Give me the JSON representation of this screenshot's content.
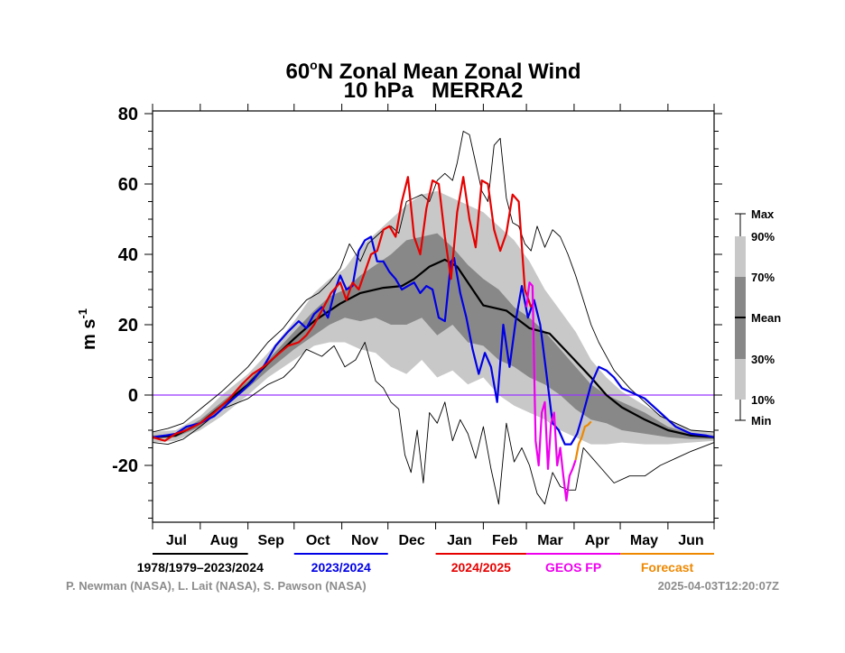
{
  "chart_data": {
    "type": "line",
    "title": "60°N Zonal Mean Zonal Wind",
    "subtitle": "10 hPa   MERRA2",
    "title_degree_part": {
      "pre": "60",
      "deg": "o",
      "post": "N Zonal Mean Zonal Wind"
    },
    "xlabel": "",
    "ylabel": "m s",
    "ylabel_superscript": "-1",
    "x_units": "days since Jul 1",
    "xlim": [
      0,
      365
    ],
    "ylim": [
      -36,
      81
    ],
    "y_ticks": [
      -20,
      0,
      20,
      40,
      60,
      80
    ],
    "y_minor_step": 5,
    "grid": false,
    "months": [
      "Jul",
      "Aug",
      "Sep",
      "Oct",
      "Nov",
      "Dec",
      "Jan",
      "Feb",
      "Mar",
      "Apr",
      "May",
      "Jun"
    ],
    "month_starts": [
      0,
      31,
      62,
      92,
      123,
      153,
      184,
      215,
      243,
      274,
      304,
      335,
      365
    ],
    "zero_line": {
      "value": 0,
      "color": "#9933ff"
    },
    "colors": {
      "climatology": "#000000",
      "y2023": "#0000e6",
      "y2024": "#e60000",
      "geos": "#ee00ee",
      "forecast": "#ee8800",
      "band_outer": "#c8c8c8",
      "band_inner": "#888888"
    },
    "bands": {
      "x": [
        0,
        15,
        31,
        45,
        62,
        75,
        92,
        105,
        115,
        125,
        135,
        145,
        155,
        165,
        175,
        185,
        195,
        205,
        215,
        225,
        235,
        245,
        255,
        265,
        275,
        285,
        295,
        305,
        320,
        335,
        350,
        365
      ],
      "p10": [
        -13.5,
        -13,
        -10,
        -6,
        0,
        5,
        10,
        14,
        15,
        15,
        13,
        12,
        8,
        6,
        10,
        5,
        7,
        3,
        5,
        0,
        -3,
        -5,
        -7,
        -10,
        -12,
        -14,
        -14,
        -13.5,
        -14,
        -14,
        -13.5,
        -13
      ],
      "p30": [
        -12.5,
        -12,
        -9,
        -4,
        2,
        7,
        13,
        17,
        20,
        22,
        21,
        22,
        20,
        20,
        22,
        17,
        20,
        15,
        14,
        10,
        8,
        5,
        3,
        0,
        -4,
        -7,
        -8,
        -10,
        -11,
        -12,
        -12.5,
        -12.5
      ],
      "p70": [
        -11.5,
        -11,
        -7,
        -2,
        4,
        10,
        18,
        24,
        28,
        30,
        34,
        37,
        40,
        44,
        45,
        46,
        42,
        37,
        33,
        30,
        25,
        22,
        18,
        13,
        8,
        3,
        0,
        -2,
        -5,
        -9,
        -11,
        -11.5
      ],
      "p90": [
        -10.5,
        -10,
        -6,
        0,
        6,
        12,
        21,
        29,
        33,
        36,
        42,
        46,
        50,
        54,
        57,
        58,
        56,
        54,
        52,
        48,
        44,
        38,
        30,
        24,
        18,
        10,
        5,
        1,
        -3,
        -7,
        -10,
        -10.5
      ]
    },
    "series": [
      {
        "name": "1978/1979–2023/2024 Mean",
        "key": "mean",
        "color": "#000000",
        "x": [
          0,
          15,
          31,
          45,
          62,
          75,
          92,
          105,
          122,
          135,
          150,
          162,
          170,
          180,
          190,
          198,
          208,
          215,
          230,
          245,
          258,
          270,
          285,
          295,
          305,
          320,
          335,
          350,
          365
        ],
        "y": [
          -12,
          -11.5,
          -8,
          -3,
          3,
          9,
          16,
          21,
          26,
          29,
          30.5,
          31,
          33,
          36.5,
          38.5,
          36.5,
          30,
          25.5,
          24,
          19,
          17.5,
          12,
          5,
          0,
          -3.5,
          -7,
          -10,
          -11.5,
          -12
        ]
      },
      {
        "name": "Max",
        "key": "max",
        "color": "#000000",
        "x": [
          0,
          10,
          20,
          31,
          45,
          62,
          75,
          85,
          92,
          100,
          108,
          115,
          122,
          128,
          135,
          140,
          145,
          150,
          155,
          160,
          165,
          170,
          175,
          180,
          185,
          190,
          195,
          198,
          202,
          206,
          210,
          214,
          218,
          222,
          226,
          230,
          234,
          238,
          242,
          246,
          250,
          255,
          260,
          265,
          270,
          275,
          280,
          285,
          290,
          300,
          310,
          320,
          330,
          340,
          350,
          365
        ],
        "y": [
          -10.5,
          -9.5,
          -8,
          -4,
          1,
          8,
          15,
          19,
          23,
          27,
          29,
          32,
          36,
          43,
          38,
          43,
          45,
          47,
          48,
          46,
          55,
          56,
          57,
          55,
          61,
          63,
          61,
          66,
          75,
          74,
          66,
          58,
          55,
          71,
          73,
          56,
          49,
          48,
          43,
          41,
          48,
          42,
          47,
          45,
          40,
          34,
          27,
          20,
          15,
          7,
          2,
          -2,
          -6,
          -8,
          -10,
          -10.5
        ]
      },
      {
        "name": "Min",
        "key": "min",
        "color": "#000000",
        "x": [
          0,
          10,
          20,
          31,
          45,
          62,
          75,
          85,
          92,
          100,
          110,
          118,
          125,
          132,
          138,
          145,
          150,
          155,
          160,
          164,
          168,
          172,
          176,
          180,
          185,
          190,
          195,
          200,
          205,
          210,
          215,
          220,
          225,
          230,
          235,
          240,
          245,
          250,
          255,
          260,
          265,
          270,
          275,
          280,
          290,
          300,
          310,
          320,
          330,
          340,
          350,
          365
        ],
        "y": [
          -13.5,
          -14,
          -12.5,
          -9,
          -4,
          -1,
          3,
          5,
          8,
          13,
          11,
          14,
          8,
          10,
          15,
          4,
          2,
          -2,
          -4,
          -17,
          -22,
          -10,
          -25,
          -5,
          -8,
          -2,
          -13,
          -7,
          -11,
          -18,
          -9,
          -21,
          -31,
          -8,
          -19,
          -15,
          -20,
          -28,
          -31,
          -22,
          -26,
          -27,
          -27,
          -15,
          -20,
          -25,
          -23,
          -23,
          -20,
          -18,
          -16,
          -13.5
        ]
      },
      {
        "name": "2023/2024",
        "key": "y2023",
        "color": "#0000e6",
        "x": [
          0,
          8,
          15,
          22,
          31,
          40,
          50,
          58,
          65,
          72,
          80,
          88,
          95,
          100,
          105,
          110,
          114,
          118,
          122,
          126,
          130,
          134,
          138,
          142,
          146,
          150,
          154,
          158,
          162,
          166,
          170,
          174,
          178,
          182,
          186,
          190,
          194,
          196,
          200,
          204,
          208,
          212,
          216,
          220,
          224,
          228,
          232,
          236,
          240,
          244,
          248,
          252,
          256,
          260,
          264,
          268,
          272,
          276,
          280,
          285,
          290,
          295,
          300,
          305,
          310,
          315,
          320,
          325,
          330,
          335,
          340,
          350,
          360,
          365
        ],
        "y": [
          -12,
          -11.5,
          -11,
          -9,
          -8,
          -6,
          -2,
          1,
          4,
          8,
          14,
          18,
          21,
          19,
          23,
          25,
          22,
          29,
          34,
          30,
          31,
          41,
          44,
          45,
          38,
          38,
          35,
          33,
          30,
          31,
          32,
          29,
          31,
          30,
          22,
          21,
          38,
          39,
          29,
          22,
          13,
          6,
          12,
          8,
          -2,
          20,
          8,
          21,
          31,
          22,
          27,
          20,
          6,
          -8,
          -10,
          -14,
          -14,
          -11,
          -5,
          3,
          8,
          7,
          5,
          2,
          1,
          0,
          -1,
          -3,
          -5,
          -7,
          -9,
          -11,
          -11.5,
          -12
        ]
      },
      {
        "name": "2024/2025",
        "key": "y2024",
        "color": "#e60000",
        "x": [
          0,
          8,
          15,
          22,
          31,
          40,
          50,
          58,
          65,
          72,
          80,
          88,
          95,
          100,
          105,
          110,
          116,
          122,
          126,
          130,
          134,
          138,
          142,
          146,
          150,
          154,
          158,
          162,
          166,
          170,
          174,
          178,
          182,
          186,
          190,
          194,
          198,
          202,
          206,
          210,
          214,
          218,
          222,
          226,
          230,
          234,
          238,
          242,
          246
        ],
        "y": [
          -12,
          -13,
          -11,
          -10,
          -8,
          -5,
          -1,
          3,
          6,
          8,
          11,
          14,
          15,
          17,
          20,
          24,
          29,
          32,
          27,
          32,
          30,
          35,
          40,
          41,
          47,
          48,
          45,
          55,
          62,
          45,
          40,
          53,
          61,
          60,
          45,
          33,
          52,
          62,
          50,
          42,
          61,
          60,
          47,
          41,
          46,
          57,
          55,
          30,
          25
        ]
      },
      {
        "name": "GEOS FP",
        "key": "geos",
        "color": "#ee00ee",
        "x": [
          243,
          245,
          247,
          249,
          251,
          253,
          255,
          257,
          259,
          261,
          263,
          265,
          267,
          269,
          271,
          273,
          275
        ],
        "y": [
          25,
          32,
          31,
          -13,
          -20,
          -5,
          -2,
          -21,
          -8,
          -5,
          -20,
          -15,
          -23,
          -30,
          -23,
          -21,
          -18.5
        ]
      },
      {
        "name": "Forecast",
        "key": "forecast",
        "color": "#ee8800",
        "x": [
          275,
          277,
          279,
          281,
          283,
          285
        ],
        "y": [
          -18.5,
          -14,
          -12,
          -9,
          -8.5,
          -7.5
        ]
      }
    ],
    "legend": [
      {
        "label": "1978/1979–2023/2024",
        "color": "#000000",
        "month_from": 0,
        "month_to": 1
      },
      {
        "label": "2023/2024",
        "color": "#0000e6",
        "month_from": 3,
        "month_to": 4
      },
      {
        "label": "2024/2025",
        "color": "#e60000",
        "month_from": 6,
        "month_to": 7
      },
      {
        "label": "GEOS FP",
        "color": "#ee00ee",
        "month_from": 8,
        "month_to": 9
      },
      {
        "label": "Forecast",
        "color": "#ee8800",
        "month_from": 10,
        "month_to": 11
      }
    ],
    "percentile_key": {
      "labels": [
        "Max",
        "90%",
        "70%",
        "Mean",
        "30%",
        "10%",
        "Min"
      ]
    },
    "credits": "P. Newman (NASA), L. Lait (NASA), S. Pawson (NASA)",
    "timestamp": "2025-04-03T12:20:07Z"
  }
}
